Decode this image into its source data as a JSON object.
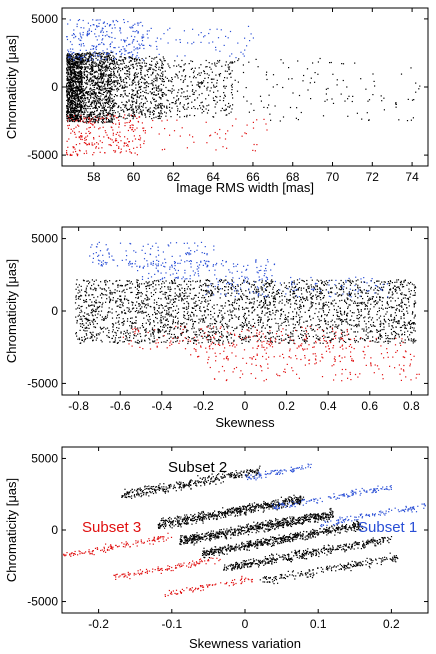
{
  "chart_data": [
    {
      "type": "scatter",
      "xlabel": "Image RMS width [mas]",
      "ylabel": "Chromaticity [μas]",
      "xlim": [
        56.4,
        74.8
      ],
      "ylim": [
        -5800,
        5800
      ],
      "xticks": [
        "58",
        "60",
        "62",
        "64",
        "66",
        "68",
        "70",
        "72",
        "74"
      ],
      "yticks": [
        "5000",
        "0",
        "-5000"
      ],
      "grid": false,
      "series": [
        {
          "color": "#000000",
          "clusters": [
            {
              "x": [
                56.6,
                57.4
              ],
              "y": [
                -2500,
                2500
              ],
              "n": 1100
            },
            {
              "x": [
                57.4,
                59.0
              ],
              "y": [
                -2600,
                2600
              ],
              "n": 900
            },
            {
              "x": [
                59.0,
                61.5
              ],
              "y": [
                -2300,
                2300
              ],
              "n": 550
            },
            {
              "x": [
                61.5,
                65.0
              ],
              "y": [
                -2200,
                2000
              ],
              "n": 300
            },
            {
              "x": [
                65.0,
                74.5
              ],
              "y": [
                -2500,
                2200
              ],
              "n": 120
            }
          ]
        },
        {
          "color": "#2a4fd6",
          "clusters": [
            {
              "x": [
                56.6,
                60.5
              ],
              "y": [
                2000,
                5000
              ],
              "n": 260
            },
            {
              "x": [
                60.5,
                66.0
              ],
              "y": [
                2200,
                4500
              ],
              "n": 60
            }
          ]
        },
        {
          "color": "#e01010",
          "clusters": [
            {
              "x": [
                56.6,
                60.5
              ],
              "y": [
                -5000,
                -2000
              ],
              "n": 240
            },
            {
              "x": [
                60.5,
                67.0
              ],
              "y": [
                -4800,
                -2300
              ],
              "n": 50
            }
          ]
        }
      ]
    },
    {
      "type": "scatter",
      "xlabel": "Skewness",
      "ylabel": "Chromaticity [μas]",
      "xlim": [
        -0.88,
        0.88
      ],
      "ylim": [
        -5800,
        5800
      ],
      "xticks": [
        "-0.8",
        "-0.6",
        "-0.4",
        "-0.2",
        "0",
        "0.2",
        "0.4",
        "0.6",
        "0.8"
      ],
      "yticks": [
        "5000",
        "0",
        "-5000"
      ],
      "grid": false,
      "series": [
        {
          "color": "#000000",
          "clusters": [
            {
              "x": [
                -0.82,
                0.82
              ],
              "y": [
                -2200,
                2200
              ],
              "n": 2600
            }
          ]
        },
        {
          "color": "#2a4fd6",
          "clusters": [
            {
              "x": [
                -0.75,
                -0.15
              ],
              "y": [
                3000,
                4800
              ],
              "n": 120
            },
            {
              "x": [
                -0.55,
                0.15
              ],
              "y": [
                2200,
                3600
              ],
              "n": 140
            },
            {
              "x": [
                -0.2,
                0.7
              ],
              "y": [
                1000,
                2400
              ],
              "n": 120
            }
          ]
        },
        {
          "color": "#e01010",
          "clusters": [
            {
              "x": [
                -0.6,
                0.5
              ],
              "y": [
                -2600,
                -1000
              ],
              "n": 140
            },
            {
              "x": [
                -0.3,
                0.8
              ],
              "y": [
                -3400,
                -1800
              ],
              "n": 140
            },
            {
              "x": [
                -0.2,
                0.85
              ],
              "y": [
                -4800,
                -3000
              ],
              "n": 120
            }
          ]
        }
      ]
    },
    {
      "type": "scatter",
      "xlabel": "Skewness variation",
      "ylabel": "Chromaticity [μas]",
      "xlim": [
        -0.25,
        0.25
      ],
      "ylim": [
        -5800,
        5800
      ],
      "xticks": [
        "-0.2",
        "-0.1",
        "0",
        "0.1",
        "0.2"
      ],
      "yticks": [
        "5000",
        "0",
        "-5000"
      ],
      "grid": false,
      "annotations": [
        "Subset 2",
        "Subset 3",
        "Subset 1"
      ],
      "series": [
        {
          "color": "#000000",
          "bands": [
            {
              "x": [
                -0.17,
                0.02
              ],
              "y0": 3300,
              "slope": 9000,
              "w": 500,
              "n": 350
            },
            {
              "x": [
                -0.12,
                0.08
              ],
              "y0": 1300,
              "slope": 9000,
              "w": 500,
              "n": 600
            },
            {
              "x": [
                -0.09,
                0.12
              ],
              "y0": 200,
              "slope": 9000,
              "w": 500,
              "n": 700
            },
            {
              "x": [
                -0.06,
                0.16
              ],
              "y0": -600,
              "slope": 9000,
              "w": 450,
              "n": 600
            },
            {
              "x": [
                -0.03,
                0.2
              ],
              "y0": -1600,
              "slope": 9000,
              "w": 450,
              "n": 450
            },
            {
              "x": [
                0.02,
                0.21
              ],
              "y0": -2700,
              "slope": 9000,
              "w": 450,
              "n": 200
            }
          ]
        },
        {
          "color": "#2a4fd6",
          "bands": [
            {
              "x": [
                0.0,
                0.09
              ],
              "y0": 4100,
              "slope": 9000,
              "w": 350,
              "n": 80
            },
            {
              "x": [
                0.03,
                0.2
              ],
              "y0": 2300,
              "slope": 9000,
              "w": 350,
              "n": 130
            },
            {
              "x": [
                0.1,
                0.25
              ],
              "y0": 1100,
              "slope": 9000,
              "w": 350,
              "n": 110
            }
          ]
        },
        {
          "color": "#e01010",
          "bands": [
            {
              "x": [
                -0.25,
                -0.1
              ],
              "y0": -1100,
              "slope": 9000,
              "w": 350,
              "n": 120
            },
            {
              "x": [
                -0.18,
                -0.03
              ],
              "y0": -2600,
              "slope": 9000,
              "w": 350,
              "n": 110
            },
            {
              "x": [
                -0.11,
                0.01
              ],
              "y0": -3900,
              "slope": 9000,
              "w": 350,
              "n": 80
            }
          ]
        }
      ]
    }
  ]
}
